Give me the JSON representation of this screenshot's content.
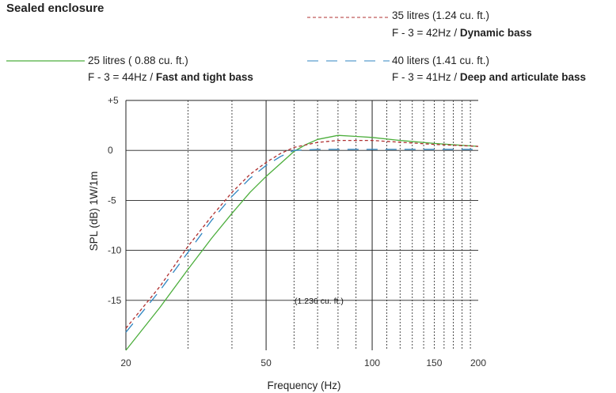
{
  "chart_data": {
    "type": "line",
    "title": "Sealed enclosure",
    "xlabel": "Frequency (Hz)",
    "ylabel": "SPL (dB) 1W/1m",
    "x_scale": "log",
    "xlim": [
      20,
      200
    ],
    "ylim": [
      -20,
      5
    ],
    "x_ticks": [
      20,
      50,
      100,
      150,
      200
    ],
    "x_tick_labels": [
      "20",
      "50",
      "100",
      "150",
      "200"
    ],
    "y_ticks": [
      5,
      0,
      -5,
      -10,
      -15
    ],
    "y_tick_labels": [
      "+5",
      "0",
      "-5",
      "-10",
      "-15"
    ],
    "grid": true,
    "legend_position": "top",
    "annotation": "(1.236 cu. ft.)",
    "series": [
      {
        "name": "25 litres ( 0.88 cu. ft.)",
        "detail_prefix": "F - 3 = 44Hz / ",
        "detail_bold": "Fast and tight bass",
        "color": "#4cae3c",
        "dash": "solid",
        "x": [
          20,
          25,
          30,
          35,
          40,
          45,
          50,
          55,
          60,
          65,
          70,
          80,
          90,
          100,
          120,
          150,
          200
        ],
        "y": [
          -20,
          -15.7,
          -11.9,
          -8.8,
          -6.3,
          -4.2,
          -2.6,
          -1.3,
          -0.1,
          0.6,
          1.1,
          1.5,
          1.4,
          1.3,
          1.0,
          0.7,
          0.4
        ]
      },
      {
        "name": "35 litres (1.24 cu. ft.)",
        "detail_prefix": "F - 3 = 42Hz / ",
        "detail_bold": "Dynamic bass",
        "color": "#b03030",
        "dash": "dashed",
        "x": [
          20,
          25,
          30,
          35,
          40,
          45,
          50,
          55,
          60,
          70,
          80,
          100,
          150,
          200
        ],
        "y": [
          -17.8,
          -13.6,
          -9.6,
          -6.6,
          -4.2,
          -2.4,
          -1.2,
          -0.3,
          0.3,
          0.8,
          1.0,
          1.0,
          0.6,
          0.4
        ]
      },
      {
        "name": "40 liters (1.41 cu. ft.)",
        "detail_prefix": "F - 3 = 41Hz / ",
        "detail_bold": "Deep and articulate bass",
        "color": "#2f86c2",
        "dash": "long-dashed",
        "x": [
          20,
          25,
          30,
          35,
          40,
          45,
          50,
          55,
          60,
          70,
          100,
          200
        ],
        "y": [
          -18.2,
          -14.0,
          -10.2,
          -7.0,
          -4.6,
          -2.8,
          -1.5,
          -0.6,
          0.0,
          0.1,
          0.1,
          0.1
        ]
      }
    ]
  }
}
